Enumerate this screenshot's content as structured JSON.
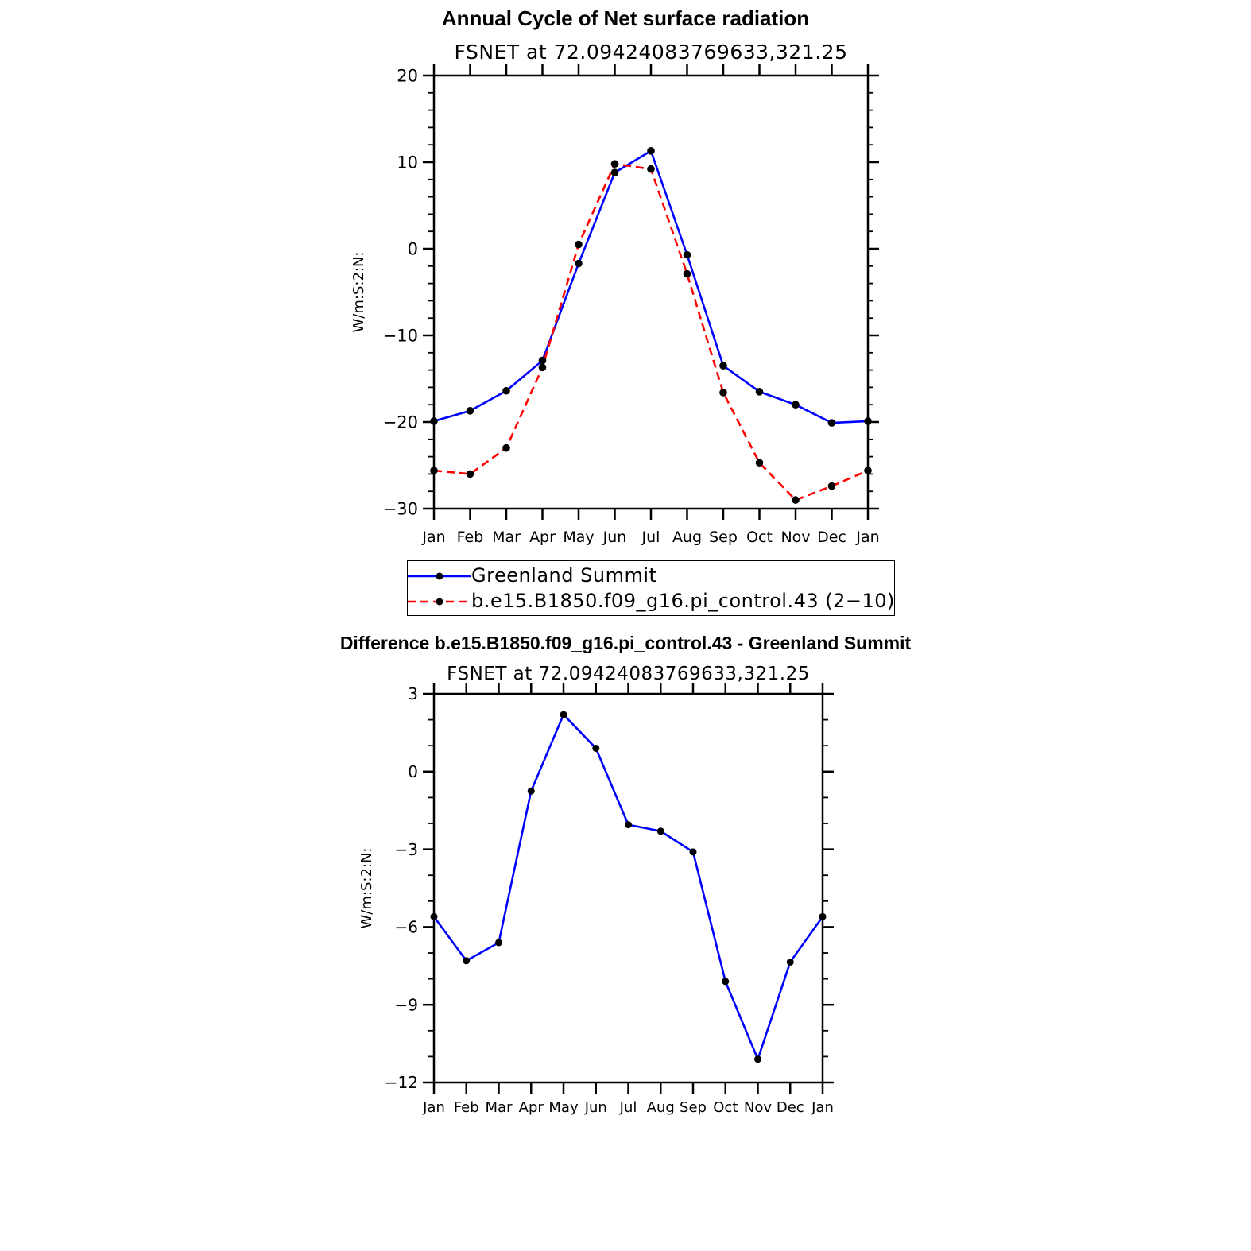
{
  "chart_data": [
    {
      "type": "line",
      "title": "Annual Cycle of Net surface radiation",
      "subtitle": "FSNET at 72.09424083769633,321.25",
      "ylabel": "W/m:S:2:N:",
      "ylim": [
        -30,
        20
      ],
      "yticks": [
        "20",
        "10",
        "0",
        "−10",
        "−20",
        "−30"
      ],
      "ytick_values": [
        20,
        10,
        0,
        -10,
        -20,
        -30
      ],
      "categories": [
        "Jan",
        "Feb",
        "Mar",
        "Apr",
        "May",
        "Jun",
        "Jul",
        "Aug",
        "Sep",
        "Oct",
        "Nov",
        "Dec",
        "Jan"
      ],
      "series": [
        {
          "name": "Greenland Summit",
          "color": "#0000ff",
          "style": "solid",
          "values": [
            -19.9,
            -18.7,
            -16.4,
            -12.9,
            -1.7,
            8.8,
            11.3,
            -0.7,
            -13.5,
            -16.5,
            -18.0,
            -20.1,
            -19.9
          ]
        },
        {
          "name": "b.e15.B1850.f09_g16.pi_control.43 (2−10)",
          "color": "#ff0000",
          "style": "dashed",
          "values": [
            -25.6,
            -26.0,
            -23.0,
            -13.7,
            0.5,
            9.8,
            9.2,
            -2.9,
            -16.6,
            -24.7,
            -29.0,
            -27.4,
            -25.6
          ]
        }
      ],
      "legend": "below"
    },
    {
      "type": "line",
      "title": "Difference b.e15.B1850.f09_g16.pi_control.43 - Greenland Summit",
      "subtitle": "FSNET at 72.09424083769633,321.25",
      "ylabel": "W/m:S:2:N:",
      "ylim": [
        -12,
        3
      ],
      "yticks": [
        "3",
        "0",
        "−3",
        "−6",
        "−9",
        "−12"
      ],
      "ytick_values": [
        3,
        0,
        -3,
        -6,
        -9,
        -12
      ],
      "categories": [
        "Jan",
        "Feb",
        "Mar",
        "Apr",
        "May",
        "Jun",
        "Jul",
        "Aug",
        "Sep",
        "Oct",
        "Nov",
        "Dec",
        "Jan"
      ],
      "series": [
        {
          "color": "#0000ff",
          "style": "solid",
          "values": [
            -5.6,
            -7.3,
            -6.6,
            -0.75,
            2.2,
            0.9,
            -2.05,
            -2.3,
            -3.1,
            -8.1,
            -11.1,
            -7.35,
            -5.6
          ]
        }
      ]
    }
  ]
}
